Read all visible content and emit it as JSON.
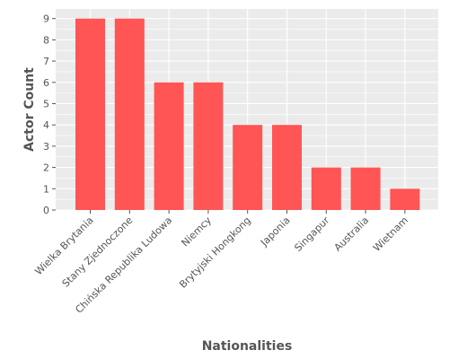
{
  "chart_data": {
    "type": "bar",
    "title": "",
    "xlabel": "Nationalities",
    "ylabel": "Actor Count",
    "categories": [
      "Wielka Brytania",
      "Stany Zjednoczone",
      "Chińska Republika Ludowa",
      "Niemcy",
      "Brytyjski Hongkong",
      "Japonia",
      "Singapur",
      "Australia",
      "Wietnam"
    ],
    "values": [
      9,
      9,
      6,
      6,
      4,
      4,
      2,
      2,
      1
    ],
    "ylim": [
      0,
      9.45
    ],
    "yticks": [
      "0",
      "1",
      "2",
      "3",
      "4",
      "5",
      "6",
      "7",
      "8",
      "9"
    ],
    "grid": true,
    "legend": "none",
    "colors": {
      "bar": "#ff5555",
      "panel": "#ebebeb",
      "grid": "#ffffff",
      "text": "#555555"
    }
  }
}
